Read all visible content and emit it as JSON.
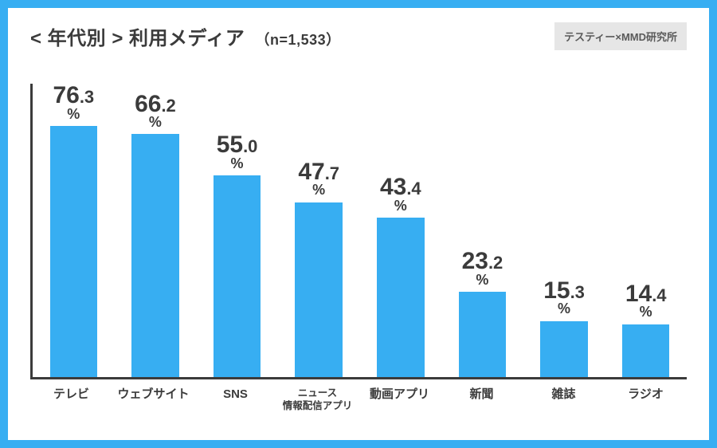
{
  "frame": {
    "border_color": "#37aef2",
    "background_color": "#ffffff"
  },
  "header": {
    "title_prefix": "< 年代別 >",
    "title_main": "利用メディア",
    "sample_label": "（n=1,533）",
    "title_color": "#3b3b3b",
    "title_fontsize": 24,
    "sub_fontsize": 18
  },
  "attribution": {
    "text": "テスティー×MMD研究所",
    "bg_color": "#e6e6e6",
    "text_color": "#5a5a5a",
    "fontsize": 13
  },
  "chart": {
    "type": "bar",
    "axis_color": "#3b3b3b",
    "bar_color": "#37aef2",
    "value_color": "#3b3b3b",
    "xlabel_color": "#3b3b3b",
    "value_int_fontsize": 30,
    "value_dec_fontsize": 22,
    "value_pct_fontsize": 18,
    "xlabel_fontsize": 15,
    "xlabel_fontsize_small": 12.5,
    "bar_width_ratio": 0.58,
    "y_max_percent": 80,
    "bars": [
      {
        "label": "テレビ",
        "value": 76.3,
        "int": "76",
        "dec": ".3",
        "label_small": false
      },
      {
        "label": "ウェブサイト",
        "value": 66.2,
        "int": "66",
        "dec": ".2",
        "label_small": false
      },
      {
        "label": "SNS",
        "value": 55.0,
        "int": "55",
        "dec": ".0",
        "label_small": false
      },
      {
        "label": "ニュース\n情報配信アプリ",
        "value": 47.7,
        "int": "47",
        "dec": ".7",
        "label_small": true
      },
      {
        "label": "動画アプリ",
        "value": 43.4,
        "int": "43",
        "dec": ".4",
        "label_small": false
      },
      {
        "label": "新聞",
        "value": 23.2,
        "int": "23",
        "dec": ".2",
        "label_small": false
      },
      {
        "label": "雑誌",
        "value": 15.3,
        "int": "15",
        "dec": ".3",
        "label_small": false
      },
      {
        "label": "ラジオ",
        "value": 14.4,
        "int": "14",
        "dec": ".4",
        "label_small": false
      }
    ]
  }
}
